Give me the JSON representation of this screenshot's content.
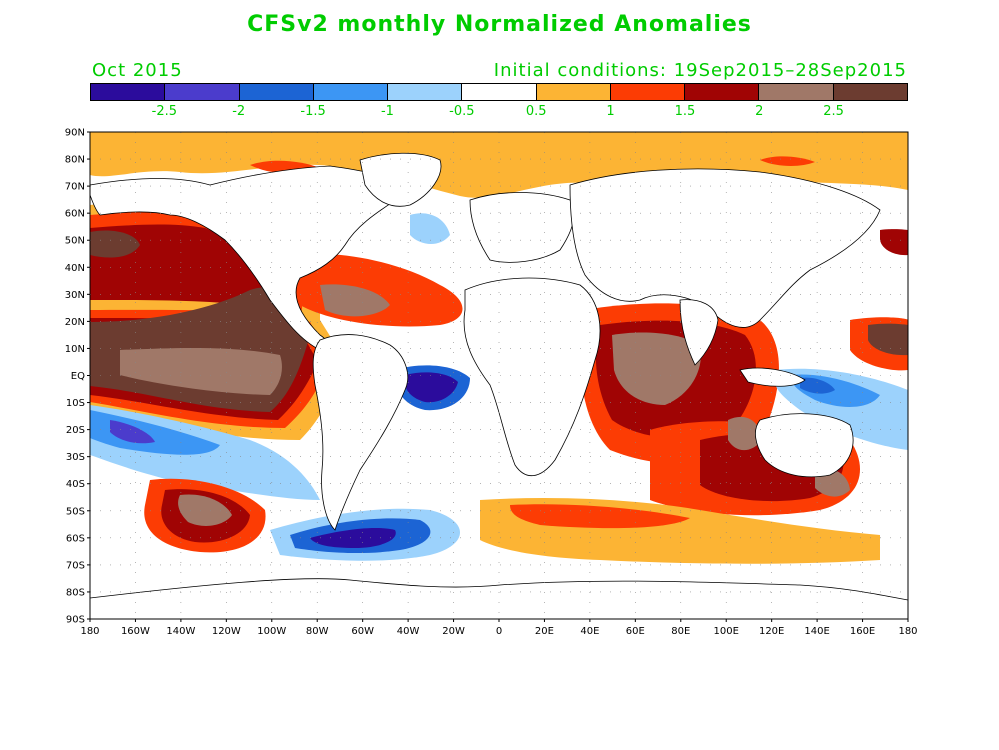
{
  "title": "CFSv2 monthly Normalized Anomalies",
  "subtitle_left": "Oct 2015",
  "subtitle_right": "Initial conditions: 19Sep2015–28Sep2015",
  "colorbar": {
    "colors": [
      "#2b0c9c",
      "#4b3ccc",
      "#1c64d4",
      "#3c96f4",
      "#9cd2fc",
      "#ffffff",
      "#fcb434",
      "#fc3c04",
      "#a00404",
      "#a07868",
      "#6c3c30"
    ],
    "labels": [
      "-2.5",
      "-2",
      "-1.5",
      "-1",
      "-0.5",
      "0.5",
      "1",
      "1.5",
      "2",
      "2.5"
    ]
  },
  "lat_labels": [
    "90N",
    "80N",
    "70N",
    "60N",
    "50N",
    "40N",
    "30N",
    "20N",
    "10N",
    "EQ",
    "10S",
    "20S",
    "30S",
    "40S",
    "50S",
    "60S",
    "70S",
    "80S",
    "90S"
  ],
  "lon_labels": [
    "180",
    "160W",
    "140W",
    "120W",
    "100W",
    "80W",
    "60W",
    "40W",
    "20W",
    "0",
    "20E",
    "40E",
    "60E",
    "80E",
    "100E",
    "120E",
    "140E",
    "160E",
    "180"
  ],
  "map_extent": {
    "lon": [
      -180,
      180
    ],
    "lat": [
      -90,
      90
    ]
  }
}
